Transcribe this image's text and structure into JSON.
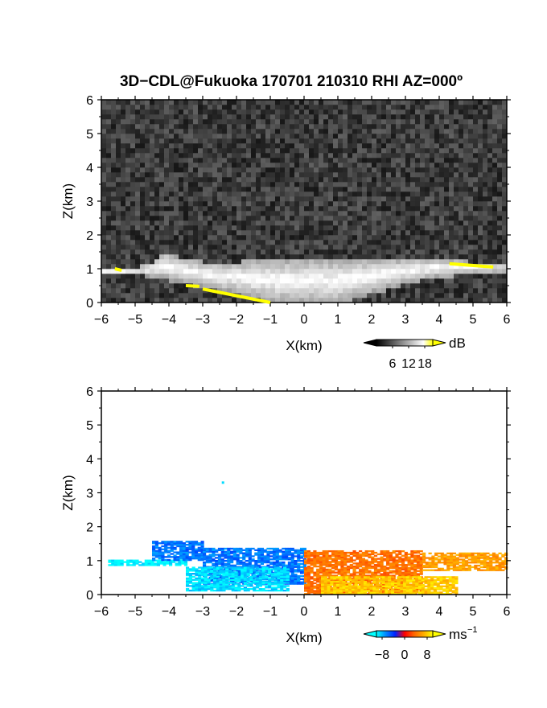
{
  "figure_title": "3D−CDL@Fukuoka 170701 210310 RHI AZ=000º",
  "chart_data": [
    {
      "type": "heatmap",
      "name": "reflectivity",
      "xlabel": "X(km)",
      "ylabel": "Z(km)",
      "xlim": [
        -6,
        6
      ],
      "ylim": [
        0,
        6
      ],
      "xticks": [
        "−6",
        "−5",
        "−4",
        "−3",
        "−2",
        "−1",
        "0",
        "1",
        "2",
        "3",
        "4",
        "5",
        "6"
      ],
      "yticks": [
        "0",
        "1",
        "2",
        "3",
        "4",
        "5",
        "6"
      ],
      "colorbar": {
        "unit": "dB",
        "ticks": [
          "6",
          "12",
          "18"
        ],
        "tick_values": [
          6,
          12,
          18
        ],
        "range": [
          0,
          21
        ],
        "colors": [
          "#000000",
          "#333333",
          "#666666",
          "#999999",
          "#cccccc",
          "#ffffff",
          "#ffff00"
        ]
      },
      "features": {
        "echo_layer_top_km": [
          [
            -6.0,
            1.0
          ],
          [
            -5.0,
            1.0
          ],
          [
            -4.5,
            1.2
          ],
          [
            -4.2,
            1.5
          ],
          [
            -3.5,
            1.3
          ],
          [
            -3.0,
            1.2
          ],
          [
            -2.0,
            1.2
          ],
          [
            -1.0,
            1.3
          ],
          [
            0.0,
            1.3
          ],
          [
            1.0,
            1.3
          ],
          [
            2.0,
            1.3
          ],
          [
            3.0,
            1.3
          ],
          [
            4.0,
            1.3
          ],
          [
            5.0,
            1.2
          ],
          [
            6.0,
            1.1
          ]
        ],
        "echo_layer_bottom_km": [
          [
            -6.0,
            0.9
          ],
          [
            -5.0,
            0.9
          ],
          [
            -4.0,
            0.7
          ],
          [
            -3.0,
            0.5
          ],
          [
            -2.0,
            0.3
          ],
          [
            -1.0,
            0.05
          ],
          [
            0.0,
            0.0
          ],
          [
            1.0,
            0.0
          ],
          [
            2.0,
            0.3
          ],
          [
            3.0,
            0.6
          ],
          [
            4.0,
            0.8
          ],
          [
            5.0,
            0.9
          ],
          [
            6.0,
            0.9
          ]
        ],
        "strong_echo_segments": [
          {
            "x": [
              -5.6,
              -5.4
            ],
            "z": [
              1.0,
              0.95
            ]
          },
          {
            "x": [
              -3.5,
              -3.1
            ],
            "z": [
              0.5,
              0.48
            ]
          },
          {
            "x": [
              -3.0,
              -1.0
            ],
            "z": [
              0.4,
              0.0
            ]
          },
          {
            "x": [
              4.3,
              5.6
            ],
            "z": [
              1.15,
              1.05
            ]
          }
        ]
      }
    },
    {
      "type": "heatmap",
      "name": "doppler_velocity",
      "xlabel": "X(km)",
      "ylabel": "Z(km)",
      "xlim": [
        -6,
        6
      ],
      "ylim": [
        0,
        6
      ],
      "xticks": [
        "−6",
        "−5",
        "−4",
        "−3",
        "−2",
        "−1",
        "0",
        "1",
        "2",
        "3",
        "4",
        "5",
        "6"
      ],
      "yticks": [
        "0",
        "1",
        "2",
        "3",
        "4",
        "5",
        "6"
      ],
      "colorbar": {
        "unit": "ms",
        "unit_exponent": "−1",
        "ticks": [
          "−8",
          "0",
          "8"
        ],
        "tick_values": [
          -8,
          0,
          8
        ],
        "range": [
          -10,
          10
        ],
        "colors": [
          "#00ffff",
          "#0088ff",
          "#0022ff",
          "#ff0000",
          "#ff6600",
          "#ffaa00",
          "#ffff00"
        ]
      },
      "features": {
        "isolated_point": {
          "x": -2.4,
          "z": 3.3,
          "velocity": -9
        },
        "regions": [
          {
            "x_range": [
              -5.8,
              -3.5
            ],
            "z_range": [
              0.85,
              1.0
            ],
            "velocity": -10
          },
          {
            "x_range": [
              -4.5,
              -3.0
            ],
            "z_range": [
              1.0,
              1.55
            ],
            "velocity": -6
          },
          {
            "x_range": [
              -3.0,
              0.0
            ],
            "z_range": [
              0.3,
              1.35
            ],
            "velocity": -6
          },
          {
            "x_range": [
              -3.5,
              -0.5
            ],
            "z_range": [
              0.1,
              0.8
            ],
            "velocity": -9
          },
          {
            "x_range": [
              0.0,
              3.5
            ],
            "z_range": [
              0.0,
              1.3
            ],
            "velocity": 4
          },
          {
            "x_range": [
              3.5,
              6.0
            ],
            "z_range": [
              0.7,
              1.2
            ],
            "velocity": 6
          },
          {
            "x_range": [
              0.5,
              4.5
            ],
            "z_range": [
              0.0,
              0.5
            ],
            "velocity": 8
          }
        ]
      }
    }
  ]
}
